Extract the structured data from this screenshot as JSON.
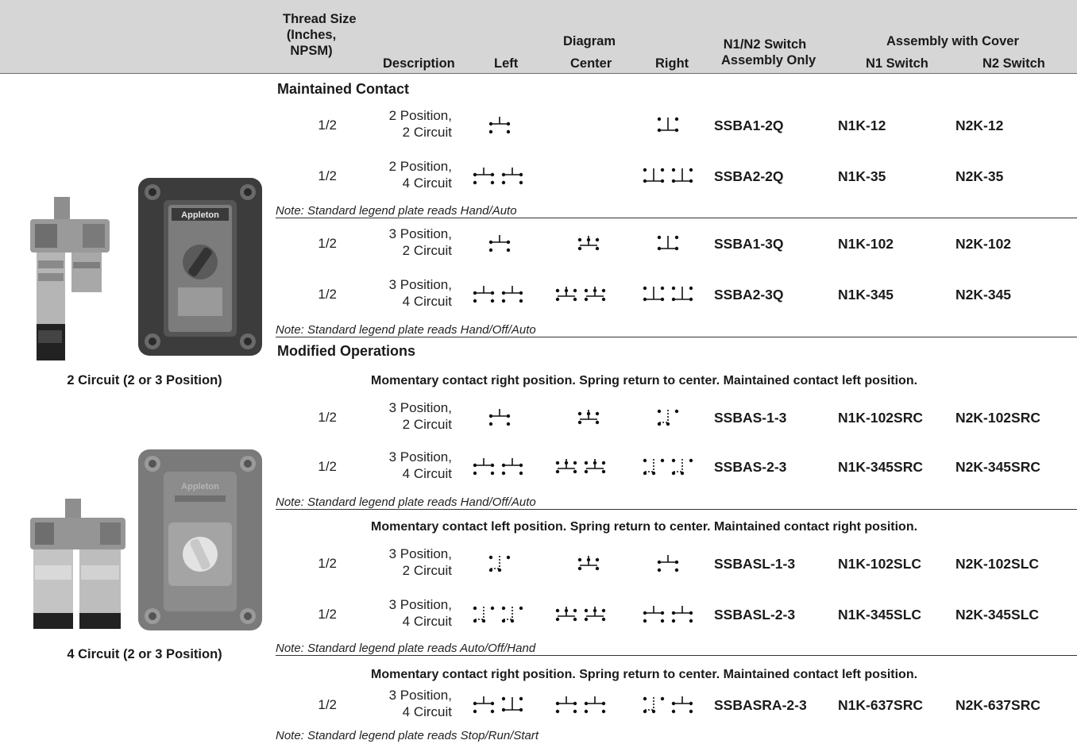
{
  "header": {
    "thread": [
      "Thread Size",
      "(Inches,",
      "NPSM)"
    ],
    "description": "Description",
    "left": "Left",
    "diagram": "Diagram",
    "center": "Center",
    "right": "Right",
    "switch_only": [
      "N1/N2 Switch",
      "Assembly Only"
    ],
    "assembly_cover": "Assembly with Cover",
    "n1": "N1 Switch",
    "n2": "N2 Switch"
  },
  "captions": {
    "two_circuit": "2 Circuit (2 or 3 Position)",
    "four_circuit": "4 Circuit (2 or 3 Position)"
  },
  "images": {
    "brand": "Appleton"
  },
  "sections": {
    "maintained": "Maintained Contact",
    "modified": "Modified Operations"
  },
  "descriptions": {
    "src_a": "Momentary contact right position. Spring return to center. Maintained contact left position.",
    "slc": "Momentary contact left position. Spring return to center. Maintained contact right position.",
    "src_b": "Momentary contact right position. Spring return to center. Maintained contact left position."
  },
  "notes": {
    "hand_auto": "Note: Standard legend plate reads Hand/Auto",
    "hand_off_auto_1": "Note: Standard legend plate reads Hand/Off/Auto",
    "hand_off_auto_2": "Note: Standard legend plate reads Hand/Off/Auto",
    "auto_off_hand": "Note: Standard legend plate reads Auto/Off/Hand",
    "stop_run_start": "Note: Standard legend plate reads Stop/Run/Start"
  },
  "rows": [
    {
      "thread": "1/2",
      "pos": "2 Position,",
      "circ": "2 Circuit",
      "switch": "SSBA1-2Q",
      "n1": "N1K-12",
      "n2": "N2K-12"
    },
    {
      "thread": "1/2",
      "pos": "2 Position,",
      "circ": "4 Circuit",
      "switch": "SSBA2-2Q",
      "n1": "N1K-35",
      "n2": "N2K-35"
    },
    {
      "thread": "1/2",
      "pos": "3 Position,",
      "circ": "2 Circuit",
      "switch": "SSBA1-3Q",
      "n1": "N1K-102",
      "n2": "N2K-102"
    },
    {
      "thread": "1/2",
      "pos": "3 Position,",
      "circ": "4 Circuit",
      "switch": "SSBA2-3Q",
      "n1": "N1K-345",
      "n2": "N2K-345"
    },
    {
      "thread": "1/2",
      "pos": "3 Position,",
      "circ": "2 Circuit",
      "switch": "SSBAS-1-3",
      "n1": "N1K-102SRC",
      "n2": "N2K-102SRC"
    },
    {
      "thread": "1/2",
      "pos": "3 Position,",
      "circ": "4 Circuit",
      "switch": "SSBAS-2-3",
      "n1": "N1K-345SRC",
      "n2": "N2K-345SRC"
    },
    {
      "thread": "1/2",
      "pos": "3 Position,",
      "circ": "2 Circuit",
      "switch": "SSBASL-1-3",
      "n1": "N1K-102SLC",
      "n2": "N2K-102SLC"
    },
    {
      "thread": "1/2",
      "pos": "3 Position,",
      "circ": "4 Circuit",
      "switch": "SSBASL-2-3",
      "n1": "N1K-345SLC",
      "n2": "N2K-345SLC"
    },
    {
      "thread": "1/2",
      "pos": "3 Position,",
      "circ": "4 Circuit",
      "switch": "SSBASRA-2-3",
      "n1": "N1K-637SRC",
      "n2": "N2K-637SRC"
    }
  ]
}
